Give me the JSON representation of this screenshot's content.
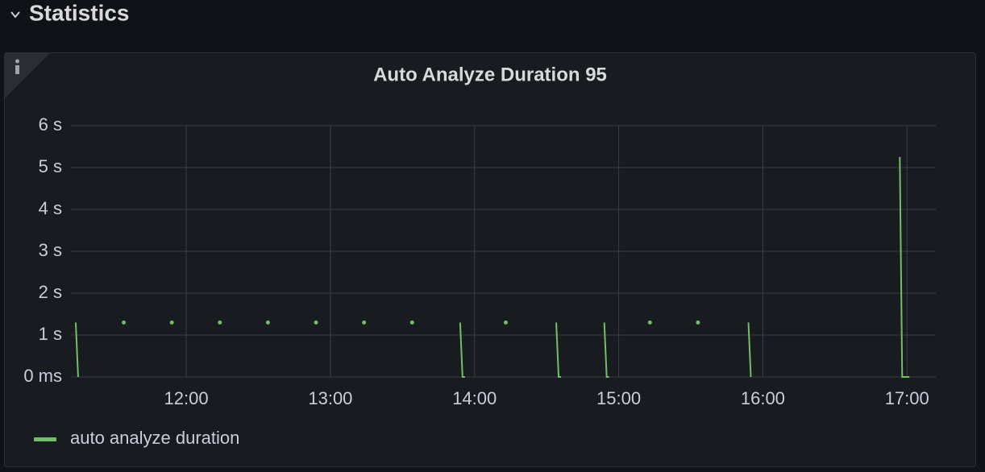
{
  "header": {
    "title": "Statistics"
  },
  "chart_data": {
    "type": "line",
    "title": "Auto Analyze Duration 95",
    "x": [
      674,
      675,
      684,
      694,
      704,
      714,
      724,
      734,
      744,
      754,
      764,
      774,
      784,
      794,
      804,
      814,
      824,
      834,
      835,
      836,
      844,
      853,
      864,
      874,
      875,
      876,
      884,
      894,
      895,
      896,
      904,
      913,
      923,
      933,
      943,
      954,
      955,
      985,
      1017,
      1018,
      1021
    ],
    "series": [
      {
        "name": "auto analyze duration",
        "color": "#73bf69",
        "values": [
          1.3,
          0,
          null,
          1.3,
          null,
          1.3,
          null,
          1.3,
          null,
          1.3,
          null,
          1.3,
          null,
          1.3,
          null,
          1.3,
          null,
          1.3,
          0,
          0,
          null,
          1.3,
          null,
          1.3,
          0,
          0,
          null,
          1.3,
          0,
          0,
          null,
          1.3,
          null,
          1.3,
          null,
          1.3,
          0,
          null,
          5.25,
          0,
          0
        ]
      }
    ],
    "xlim": [
      672,
      1032
    ],
    "xticks": [
      {
        "value": 720,
        "label": "12:00"
      },
      {
        "value": 780,
        "label": "13:00"
      },
      {
        "value": 840,
        "label": "14:00"
      },
      {
        "value": 900,
        "label": "15:00"
      },
      {
        "value": 960,
        "label": "16:00"
      },
      {
        "value": 1020,
        "label": "17:00"
      }
    ],
    "ylim": [
      0,
      6
    ],
    "yticks": [
      {
        "value": 0,
        "label": "0 ms"
      },
      {
        "value": 1,
        "label": "1 s"
      },
      {
        "value": 2,
        "label": "2 s"
      },
      {
        "value": 3,
        "label": "3 s"
      },
      {
        "value": 4,
        "label": "4 s"
      },
      {
        "value": 5,
        "label": "5 s"
      },
      {
        "value": 6,
        "label": "6 s"
      }
    ],
    "grid": true,
    "legend": "bottom-left"
  }
}
